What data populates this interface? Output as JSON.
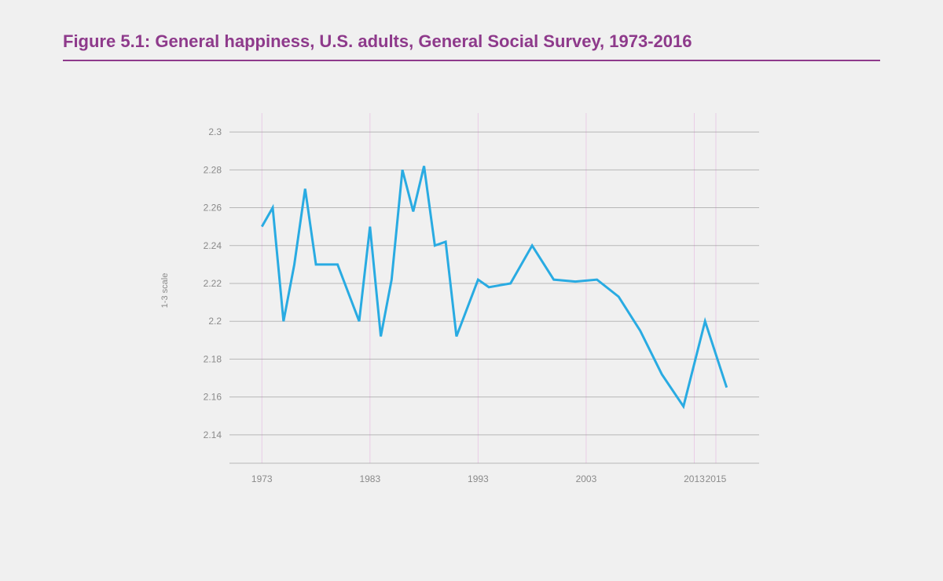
{
  "title": "Figure 5.1: General happiness, U.S. adults, General Social Survey, 1973-2016",
  "title_color": "#8e3a8b",
  "title_fontsize": 22,
  "title_fontweight": 600,
  "rule_color": "#8e3a8b",
  "background_color": "#f0f0f0",
  "chart": {
    "type": "line",
    "ylabel": "1-3 scale",
    "ylabel_fontsize": 11,
    "ylabel_color": "#8a8a8a",
    "xlim": [
      1970,
      2019
    ],
    "ylim": [
      2.125,
      2.31
    ],
    "ytick_values": [
      2.14,
      2.16,
      2.18,
      2.2,
      2.22,
      2.24,
      2.26,
      2.28,
      2.3
    ],
    "ytick_labels": [
      "2.14",
      "2.16",
      "2.18",
      "2.2",
      "2.22",
      "2.24",
      "2.26",
      "2.28",
      "2.3"
    ],
    "xtick_values": [
      1973,
      1983,
      1993,
      2003,
      2013,
      2015
    ],
    "xtick_labels": [
      "1973",
      "1983",
      "1993",
      "2003",
      "2013",
      "2015"
    ],
    "xtick_vertical_lines": [
      1973,
      1983,
      1993,
      2003,
      2013,
      2015
    ],
    "grid_color": "#8a8a8a",
    "grid_opacity": 0.55,
    "vgrid_color": "#e9c9e6",
    "vgrid_opacity": 0.9,
    "line_color": "#29abe2",
    "line_width": 3,
    "tick_label_color": "#8a8a8a",
    "tick_label_fontsize": 12,
    "x": [
      1973,
      1974,
      1975,
      1976,
      1977,
      1978,
      1980,
      1982,
      1983,
      1984,
      1985,
      1986,
      1987,
      1988,
      1989,
      1990,
      1991,
      1993,
      1994,
      1996,
      1998,
      2000,
      2002,
      2004,
      2006,
      2008,
      2010,
      2012,
      2014,
      2016
    ],
    "y": [
      2.25,
      2.26,
      2.2,
      2.23,
      2.27,
      2.23,
      2.23,
      2.2,
      2.25,
      2.192,
      2.222,
      2.28,
      2.258,
      2.282,
      2.24,
      2.242,
      2.192,
      2.222,
      2.218,
      2.22,
      2.24,
      2.222,
      2.221,
      2.222,
      2.213,
      2.195,
      2.172,
      2.155,
      2.2,
      2.165
    ]
  }
}
